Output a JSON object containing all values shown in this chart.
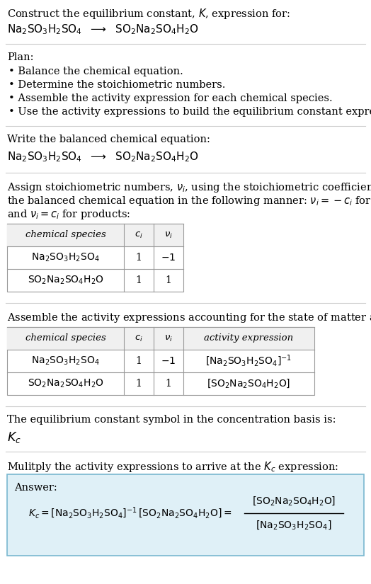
{
  "bg_color": "#ffffff",
  "text_color": "#000000",
  "answer_box_bg": "#dff0f7",
  "answer_box_border": "#7ab8d0",
  "figsize": [
    5.24,
    8.25
  ],
  "dpi": 100,
  "title_line1": "Construct the equilibrium constant, $K$, expression for:",
  "title_line2": "$\\mathrm{Na_2SO_3H_2SO_4}$  $\\longrightarrow$  $\\mathrm{SO_2Na_2SO_4H_2O}$",
  "plan_header": "Plan:",
  "plan_bullets": [
    "Balance the chemical equation.",
    "Determine the stoichiometric numbers.",
    "Assemble the activity expression for each chemical species.",
    "Use the activity expressions to build the equilibrium constant expression."
  ],
  "section2_header": "Write the balanced chemical equation:",
  "section2_eq": "$\\mathrm{Na_2SO_3H_2SO_4}$  $\\longrightarrow$  $\\mathrm{SO_2Na_2SO_4H_2O}$",
  "section3_line1": "Assign stoichiometric numbers, $\\nu_i$, using the stoichiometric coefficients, $c_i$, from",
  "section3_line2": "the balanced chemical equation in the following manner: $\\nu_i = -c_i$ for reactants",
  "section3_line3": "and $\\nu_i = c_i$ for products:",
  "table1_headers": [
    "chemical species",
    "$c_i$",
    "$\\nu_i$"
  ],
  "table1_rows": [
    [
      "$\\mathrm{Na_2SO_3H_2SO_4}$",
      "1",
      "$-1$"
    ],
    [
      "$\\mathrm{SO_2Na_2SO_4H_2O}$",
      "1",
      "1"
    ]
  ],
  "section4_intro": "Assemble the activity expressions accounting for the state of matter and $\\nu_i$:",
  "table2_headers": [
    "chemical species",
    "$c_i$",
    "$\\nu_i$",
    "activity expression"
  ],
  "table2_rows": [
    [
      "$\\mathrm{Na_2SO_3H_2SO_4}$",
      "1",
      "$-1$",
      "$[\\mathrm{Na_2SO_3H_2SO_4}]^{-1}$"
    ],
    [
      "$\\mathrm{SO_2Na_2SO_4H_2O}$",
      "1",
      "1",
      "$[\\mathrm{SO_2Na_2SO_4H_2O}]$"
    ]
  ],
  "section5_text": "The equilibrium constant symbol in the concentration basis is:",
  "section5_symbol": "$K_c$",
  "section6_text": "Mulitply the activity expressions to arrive at the $K_c$ expression:",
  "answer_label": "Answer:",
  "answer_eq_left": "$K_c = [\\mathrm{Na_2SO_3H_2SO_4}]^{-1}\\,[\\mathrm{SO_2Na_2SO_4H_2O}] = $",
  "answer_frac_num": "$[\\mathrm{SO_2Na_2SO_4H_2O}]$",
  "answer_frac_den": "$[\\mathrm{Na_2SO_3H_2SO_4}]$"
}
